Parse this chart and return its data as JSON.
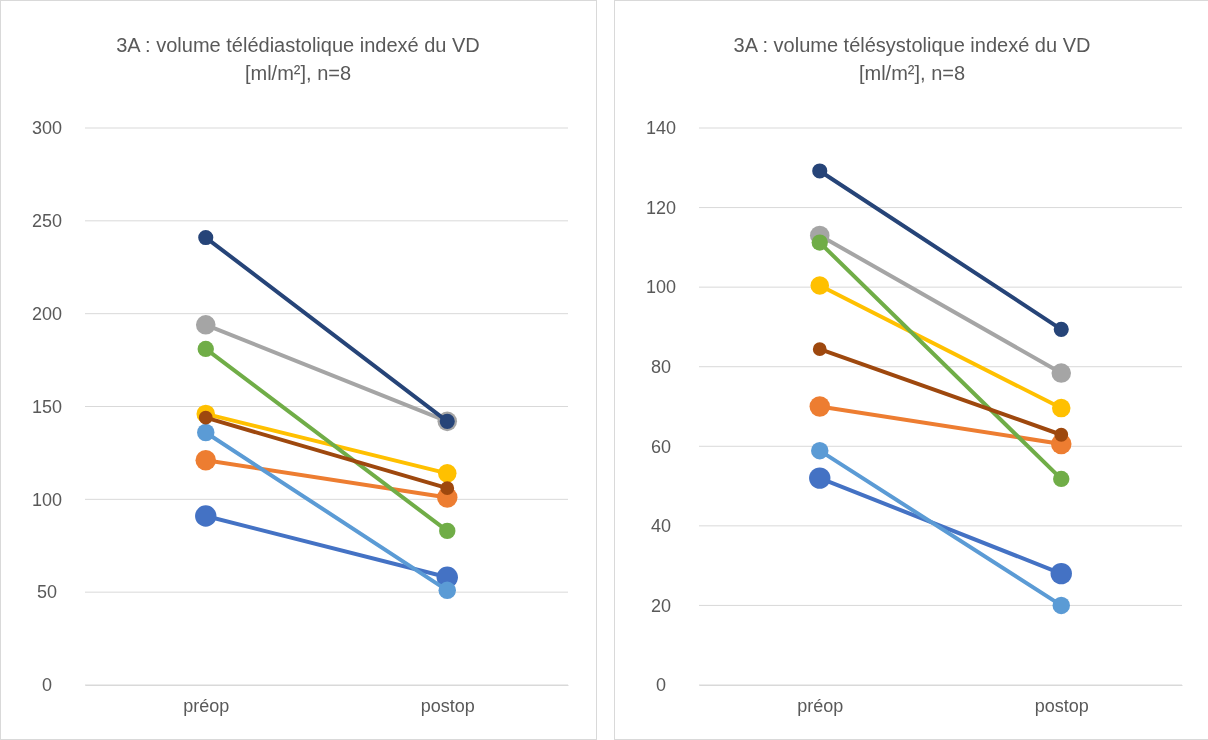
{
  "chart_data": [
    {
      "type": "line",
      "title": "3A : volume télédiastolique indexé du VD [ml/m²], n=8",
      "categories": [
        "préop",
        "postop"
      ],
      "ylim": [
        0,
        300
      ],
      "yticks": [
        0,
        50,
        100,
        150,
        200,
        250,
        300
      ],
      "grid": "y",
      "legend": false,
      "marker": "circle",
      "line_style": "solid",
      "series": [
        {
          "color": "#4472c4",
          "values": [
            91,
            58
          ]
        },
        {
          "color": "#ed7d31",
          "values": [
            121,
            101
          ]
        },
        {
          "color": "#a5a5a5",
          "values": [
            194,
            142
          ]
        },
        {
          "color": "#ffc000",
          "values": [
            146,
            114
          ]
        },
        {
          "color": "#5b9bd5",
          "values": [
            136,
            51
          ]
        },
        {
          "color": "#70ad47",
          "values": [
            181,
            83
          ]
        },
        {
          "color": "#264478",
          "values": [
            241,
            142
          ]
        },
        {
          "color": "#9e480e",
          "values": [
            144,
            106
          ]
        }
      ]
    },
    {
      "type": "line",
      "title": "3A : volume télésystolique indexé du VD [ml/m²], n=8",
      "categories": [
        "préop",
        "postop"
      ],
      "ylim": [
        0,
        140
      ],
      "yticks": [
        0,
        20,
        40,
        60,
        80,
        100,
        120,
        140
      ],
      "grid": "y",
      "legend": false,
      "marker": "circle",
      "line_style": "solid",
      "series": [
        {
          "color": "#4472c4",
          "values": [
            52,
            28
          ]
        },
        {
          "color": "#ed7d31",
          "values": [
            70,
            60.6
          ]
        },
        {
          "color": "#a5a5a5",
          "values": [
            113,
            78.4
          ]
        },
        {
          "color": "#ffc000",
          "values": [
            100.4,
            69.6
          ]
        },
        {
          "color": "#5b9bd5",
          "values": [
            58.9,
            20
          ]
        },
        {
          "color": "#70ad47",
          "values": [
            111.2,
            51.8
          ]
        },
        {
          "color": "#264478",
          "values": [
            129.2,
            89.4
          ]
        },
        {
          "color": "#9e480e",
          "values": [
            84.4,
            62.9
          ]
        }
      ]
    }
  ]
}
